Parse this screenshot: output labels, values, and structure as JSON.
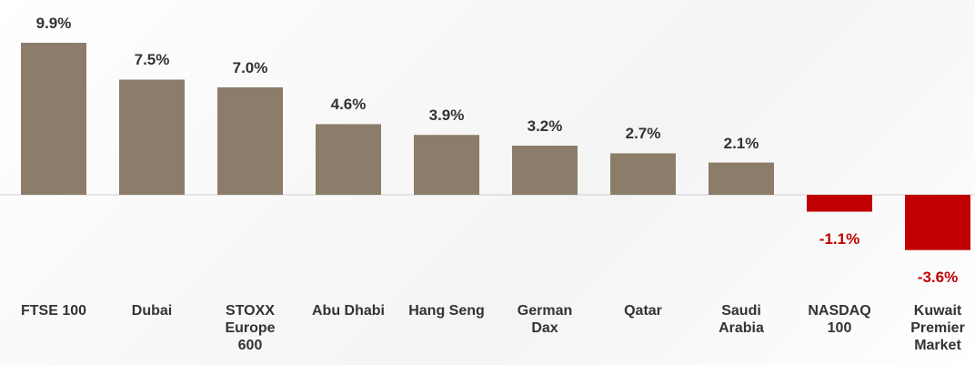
{
  "chart_data": {
    "type": "bar",
    "categories": [
      "FTSE 100",
      "Dubai",
      "STOXX Europe 600",
      "Abu Dhabi",
      "Hang Seng",
      "German Dax",
      "Qatar",
      "Saudi Arabia",
      "NASDAQ 100",
      "Kuwait Premier Market"
    ],
    "values": [
      9.9,
      7.5,
      7.0,
      4.6,
      3.9,
      3.2,
      2.7,
      2.1,
      -1.1,
      -3.6
    ],
    "value_labels": [
      "9.9%",
      "7.5%",
      "7.0%",
      "4.6%",
      "3.9%",
      "3.2%",
      "2.7%",
      "2.1%",
      "-1.1%",
      "-3.6%"
    ],
    "color": "#8b7d6a",
    "negative_color": "#c00000"
  }
}
